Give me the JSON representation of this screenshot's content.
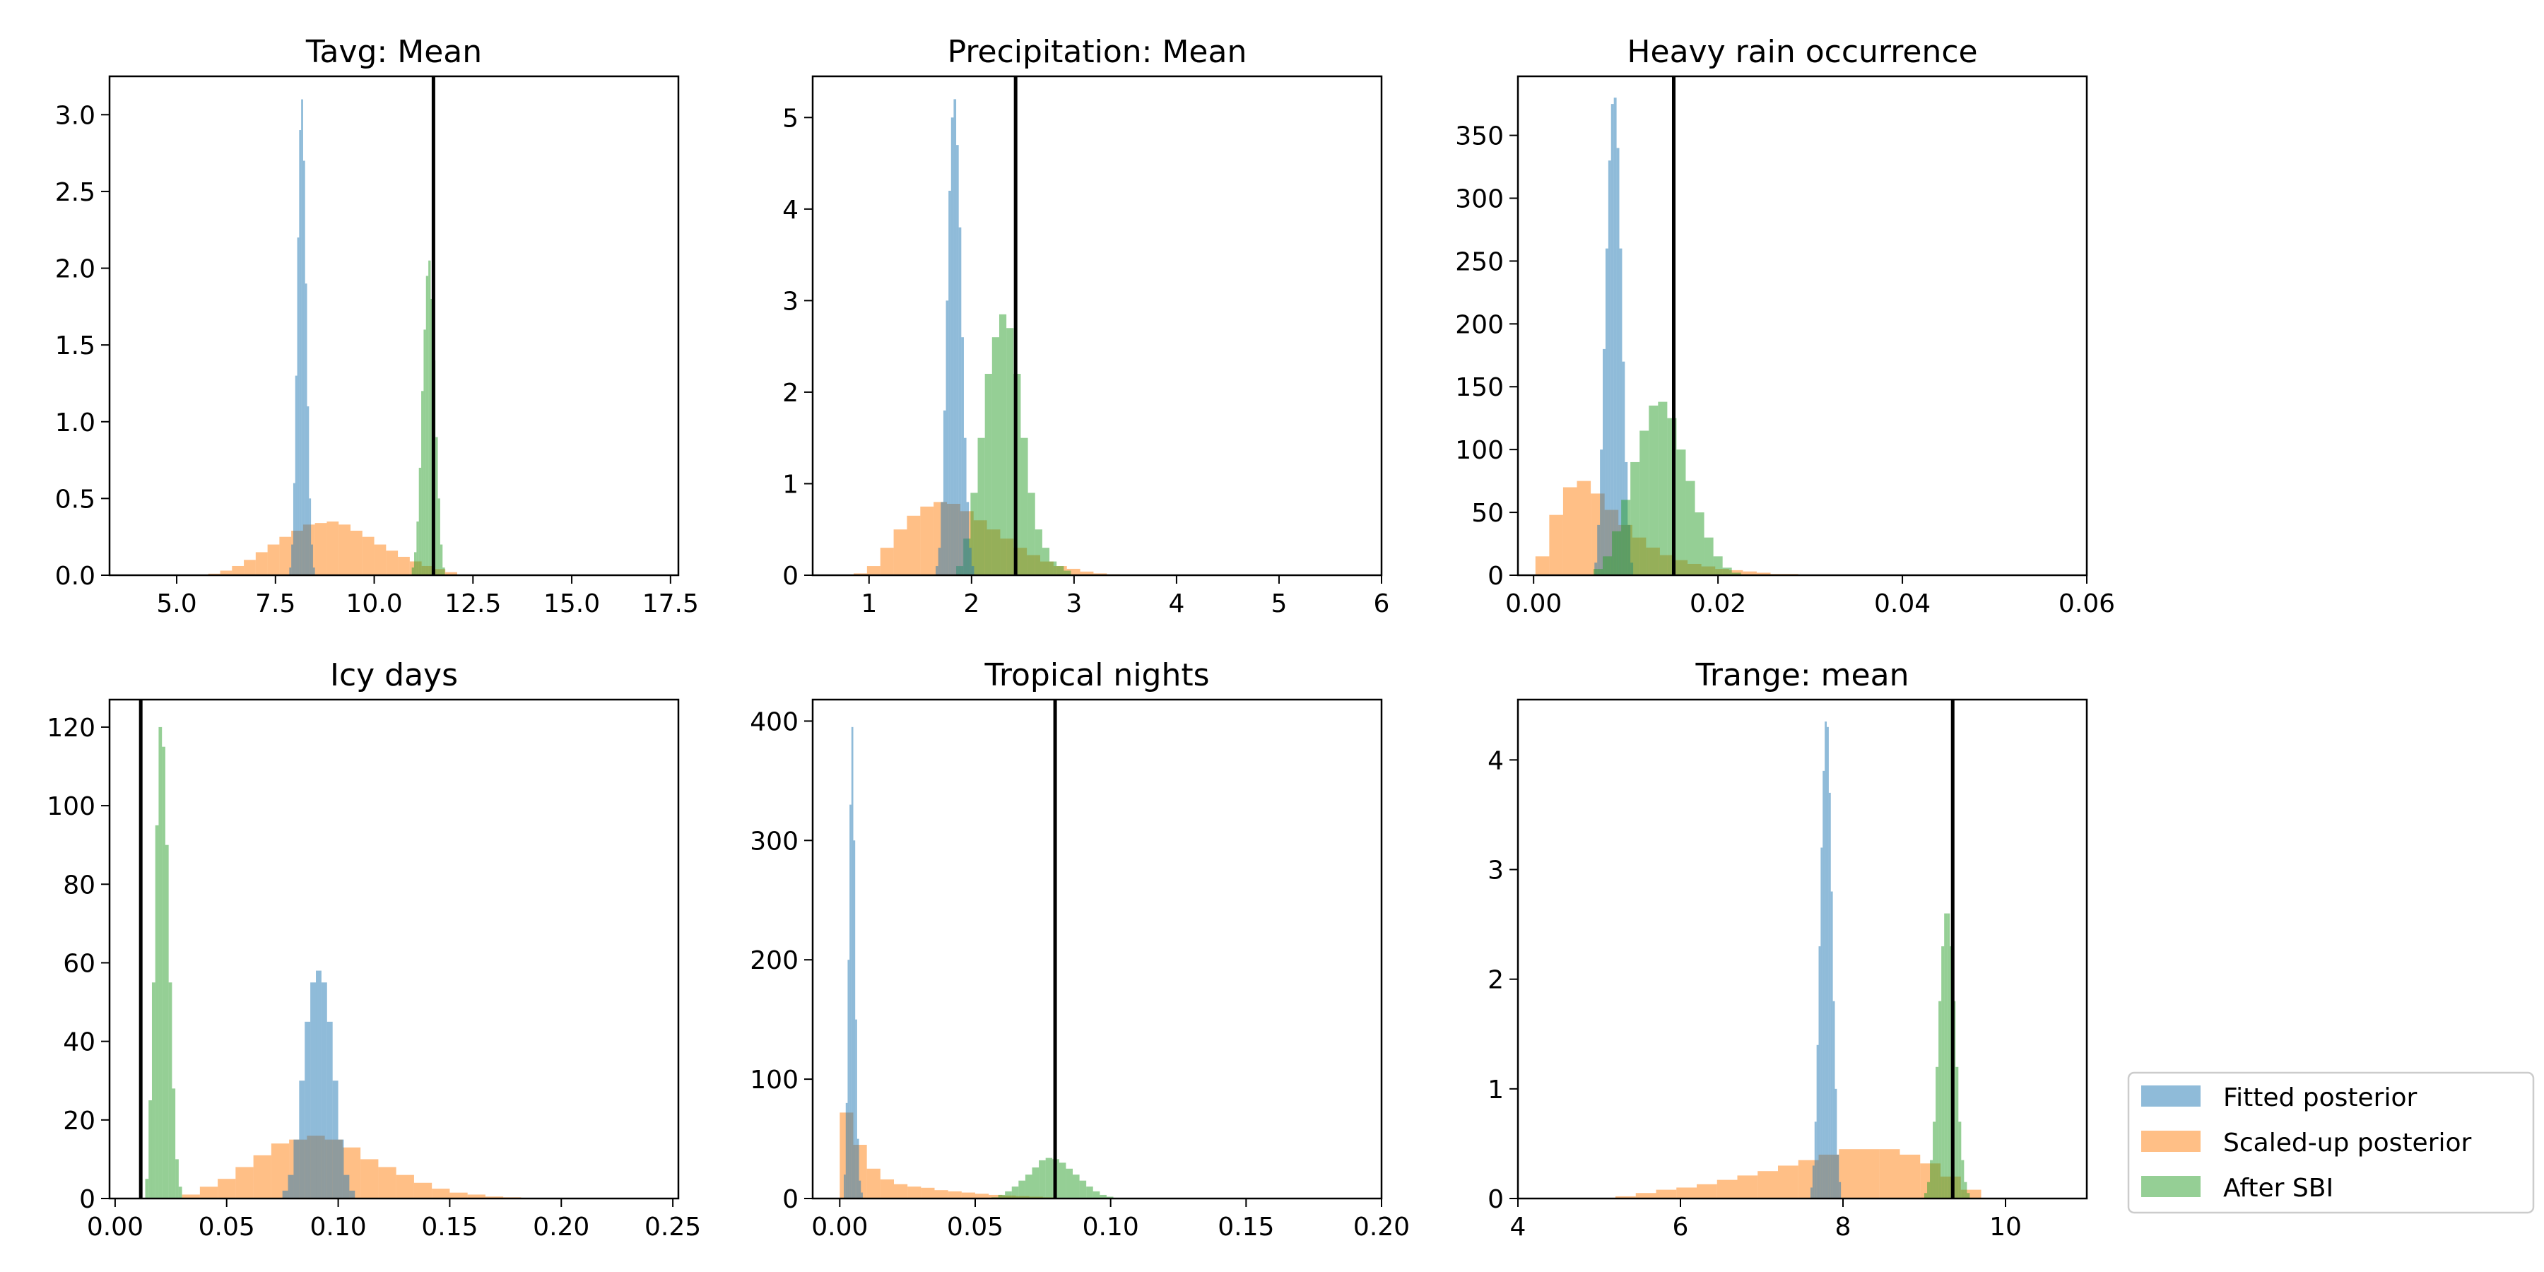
{
  "colors": {
    "fitted": "#1f77b4",
    "scaled": "#ff7f0e",
    "sbi": "#2ca02c",
    "reference": "#000000",
    "bar_alpha": 0.5
  },
  "legend": {
    "placement": "lower-right, outside plots",
    "entries": [
      {
        "key": "fitted",
        "label": "Fitted posterior"
      },
      {
        "key": "scaled",
        "label": "Scaled-up posterior"
      },
      {
        "key": "sbi",
        "label": "After SBI"
      }
    ]
  },
  "chart_data": [
    {
      "type": "histogram",
      "title": "Tavg:  Mean",
      "xlim": [
        3.3,
        17.7
      ],
      "ylim": [
        0,
        3.25
      ],
      "xticks": [
        5,
        7.5,
        10,
        12.5,
        15,
        17.5
      ],
      "xtick_labels": [
        "5.0",
        "7.5",
        "10.0",
        "12.5",
        "15.0",
        "17.5"
      ],
      "yticks": [
        0,
        0.5,
        1,
        1.5,
        2,
        2.5,
        3
      ],
      "ytick_labels": [
        "0.0",
        "0.5",
        "1.0",
        "1.5",
        "2.0",
        "2.5",
        "3.0"
      ],
      "reference_x": 11.5,
      "series": [
        {
          "key": "scaled",
          "start": 5.8,
          "width": 0.3,
          "heights": [
            0.01,
            0.03,
            0.06,
            0.1,
            0.15,
            0.2,
            0.25,
            0.29,
            0.33,
            0.34,
            0.35,
            0.33,
            0.29,
            0.25,
            0.2,
            0.16,
            0.12,
            0.09,
            0.06,
            0.04,
            0.02
          ]
        },
        {
          "key": "fitted",
          "start": 7.85,
          "width": 0.05,
          "heights": [
            0.05,
            0.2,
            0.6,
            1.3,
            2.2,
            2.9,
            3.1,
            2.7,
            1.9,
            1.1,
            0.5,
            0.2,
            0.05
          ]
        },
        {
          "key": "sbi",
          "start": 10.95,
          "width": 0.06,
          "heights": [
            0.05,
            0.15,
            0.35,
            0.7,
            1.2,
            1.6,
            1.95,
            2.05,
            1.8,
            1.4,
            0.9,
            0.5,
            0.2,
            0.05
          ]
        }
      ]
    },
    {
      "type": "histogram",
      "title": "Precipitation: Mean",
      "xlim": [
        0.45,
        6
      ],
      "ylim": [
        0,
        5.45
      ],
      "xticks": [
        1,
        2,
        3,
        4,
        5,
        6
      ],
      "xtick_labels": [
        "1",
        "2",
        "3",
        "4",
        "5",
        "6"
      ],
      "yticks": [
        0,
        1,
        2,
        3,
        4,
        5
      ],
      "ytick_labels": [
        "0",
        "1",
        "2",
        "3",
        "4",
        "5"
      ],
      "reference_x": 2.43,
      "series": [
        {
          "key": "scaled",
          "start": 0.85,
          "width": 0.13,
          "heights": [
            0.02,
            0.1,
            0.3,
            0.5,
            0.65,
            0.75,
            0.8,
            0.78,
            0.7,
            0.6,
            0.5,
            0.4,
            0.3,
            0.22,
            0.15,
            0.1,
            0.07,
            0.04,
            0.02,
            0.01
          ]
        },
        {
          "key": "sbi",
          "start": 1.85,
          "width": 0.07,
          "heights": [
            0.1,
            0.4,
            0.9,
            1.5,
            2.2,
            2.6,
            2.85,
            2.7,
            2.2,
            1.5,
            0.9,
            0.5,
            0.3,
            0.15,
            0.1,
            0.05
          ]
        },
        {
          "key": "fitted",
          "start": 1.65,
          "width": 0.025,
          "heights": [
            0.1,
            0.3,
            0.8,
            1.8,
            3.0,
            4.2,
            5.0,
            5.2,
            4.7,
            3.8,
            2.6,
            1.5,
            0.8,
            0.3,
            0.1
          ]
        }
      ]
    },
    {
      "type": "histogram",
      "title": "Heavy rain occurrence",
      "xlim": [
        -0.0017,
        0.06
      ],
      "ylim": [
        0,
        397
      ],
      "xticks": [
        0,
        0.02,
        0.04,
        0.06
      ],
      "xtick_labels": [
        "0.00",
        "0.02",
        "0.04",
        "0.06"
      ],
      "yticks": [
        0,
        50,
        100,
        150,
        200,
        250,
        300,
        350
      ],
      "ytick_labels": [
        "0",
        "50",
        "100",
        "150",
        "200",
        "250",
        "300",
        "350"
      ],
      "reference_x": 0.0152,
      "series": [
        {
          "key": "scaled",
          "start": 0.0002,
          "width": 0.0015,
          "heights": [
            15,
            48,
            70,
            75,
            65,
            52,
            40,
            30,
            22,
            16,
            12,
            9,
            7,
            5,
            4,
            3,
            2,
            1,
            1
          ]
        },
        {
          "key": "fitted",
          "start": 0.0066,
          "width": 0.0003,
          "heights": [
            10,
            40,
            100,
            180,
            260,
            330,
            375,
            380,
            340,
            260,
            170,
            90,
            40,
            10
          ]
        },
        {
          "key": "sbi",
          "start": 0.0065,
          "width": 0.001,
          "heights": [
            5,
            15,
            35,
            60,
            90,
            115,
            135,
            138,
            125,
            100,
            75,
            50,
            30,
            15,
            6,
            2
          ]
        }
      ]
    },
    {
      "type": "histogram",
      "title": "Icy days",
      "xlim": [
        -0.0025,
        0.2525
      ],
      "ylim": [
        0,
        127
      ],
      "xticks": [
        0,
        0.05,
        0.1,
        0.15,
        0.2,
        0.25
      ],
      "xtick_labels": [
        "0.00",
        "0.05",
        "0.10",
        "0.15",
        "0.20",
        "0.25"
      ],
      "yticks": [
        0,
        20,
        40,
        60,
        80,
        100,
        120
      ],
      "ytick_labels": [
        "0",
        "20",
        "40",
        "60",
        "80",
        "100",
        "120"
      ],
      "reference_x": 0.0115,
      "series": [
        {
          "key": "sbi",
          "start": 0.0135,
          "width": 0.0015,
          "heights": [
            5,
            25,
            55,
            95,
            120,
            115,
            90,
            55,
            28,
            10,
            3
          ]
        },
        {
          "key": "scaled",
          "start": 0.03,
          "width": 0.008,
          "heights": [
            1,
            3,
            5,
            8,
            11,
            14,
            15,
            16,
            15,
            13,
            10,
            8,
            6,
            4,
            2.5,
            1.5,
            1,
            0.5,
            0.3
          ]
        },
        {
          "key": "fitted",
          "start": 0.075,
          "width": 0.0025,
          "heights": [
            2,
            6,
            15,
            30,
            45,
            55,
            58,
            55,
            45,
            30,
            15,
            6,
            2
          ]
        }
      ]
    },
    {
      "type": "histogram",
      "title": "Tropical nights",
      "xlim": [
        -0.01,
        0.2
      ],
      "ylim": [
        0,
        418
      ],
      "xticks": [
        0,
        0.05,
        0.1,
        0.15,
        0.2
      ],
      "xtick_labels": [
        "0.00",
        "0.05",
        "0.10",
        "0.15",
        "0.20"
      ],
      "yticks": [
        0,
        100,
        200,
        300,
        400
      ],
      "ytick_labels": [
        "0",
        "100",
        "200",
        "300",
        "400"
      ],
      "reference_x": 0.0795,
      "series": [
        {
          "key": "scaled",
          "start": 0,
          "width": 0.005,
          "heights": [
            72,
            45,
            25,
            16,
            12,
            10,
            9,
            7,
            6,
            5,
            4,
            3,
            2.5,
            2,
            1.5,
            1
          ]
        },
        {
          "key": "fitted",
          "start": 0.0015,
          "width": 0.0007,
          "heights": [
            20,
            80,
            200,
            330,
            395,
            300,
            150,
            50,
            15,
            5
          ]
        },
        {
          "key": "sbi",
          "start": 0.056,
          "width": 0.0025,
          "heights": [
            1,
            3,
            6,
            10,
            15,
            20,
            26,
            32,
            34,
            33,
            30,
            25,
            20,
            15,
            10,
            6,
            3,
            1.5,
            0.5
          ]
        }
      ]
    },
    {
      "type": "histogram",
      "title": "Trange: mean",
      "xlim": [
        4,
        11
      ],
      "ylim": [
        0,
        4.55
      ],
      "xticks": [
        4,
        6,
        8,
        10
      ],
      "xtick_labels": [
        "4",
        "6",
        "8",
        "10"
      ],
      "yticks": [
        0,
        1,
        2,
        3,
        4
      ],
      "ytick_labels": [
        "0",
        "1",
        "2",
        "3",
        "4"
      ],
      "reference_x": 9.35,
      "series": [
        {
          "key": "scaled",
          "start": 5.2,
          "width": 0.25,
          "heights": [
            0.02,
            0.05,
            0.08,
            0.1,
            0.13,
            0.17,
            0.21,
            0.25,
            0.3,
            0.35,
            0.4,
            0.45,
            0.45,
            0.45,
            0.4,
            0.32,
            0.2,
            0.08
          ]
        },
        {
          "key": "fitted",
          "start": 7.6,
          "width": 0.025,
          "heights": [
            0.1,
            0.3,
            0.7,
            1.4,
            2.3,
            3.2,
            3.9,
            4.35,
            4.3,
            3.7,
            2.8,
            1.8,
            1.0,
            0.4,
            0.15
          ]
        },
        {
          "key": "sbi",
          "start": 9.0,
          "width": 0.035,
          "heights": [
            0.05,
            0.15,
            0.35,
            0.7,
            1.2,
            1.8,
            2.3,
            2.6,
            2.6,
            2.3,
            1.8,
            1.2,
            0.7,
            0.35,
            0.15,
            0.05
          ]
        }
      ]
    }
  ]
}
